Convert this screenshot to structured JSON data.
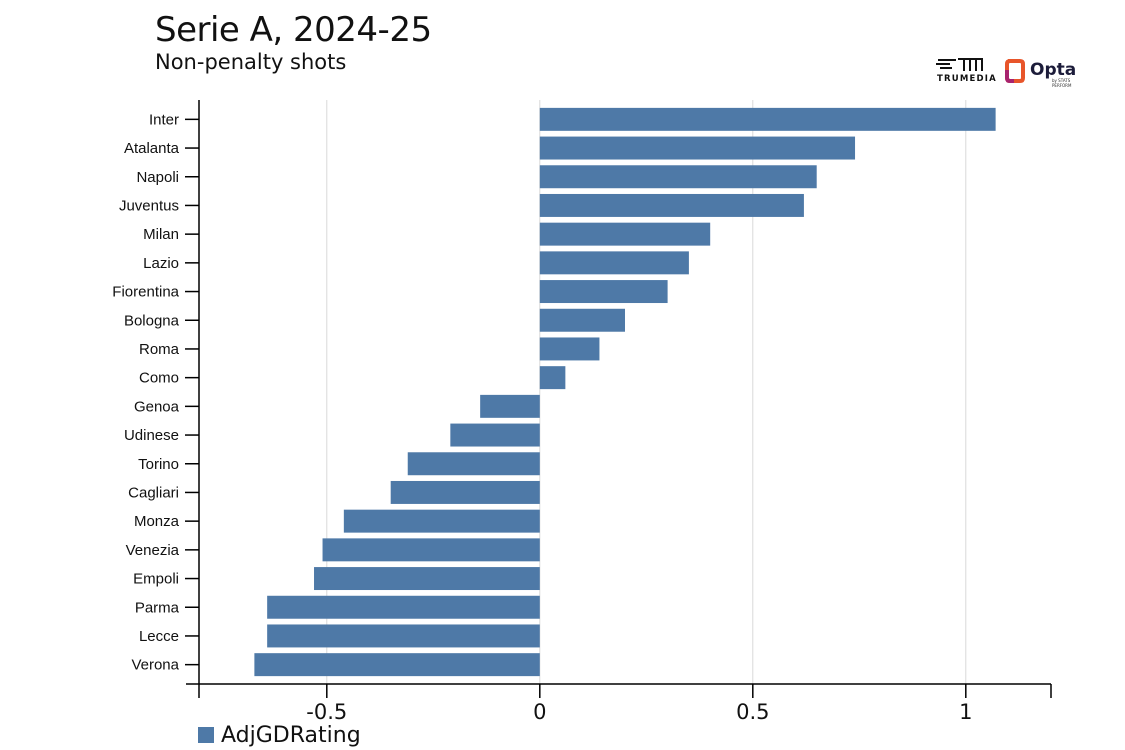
{
  "header": {
    "title": "Serie A, 2024-25",
    "subtitle": "Non-penalty shots"
  },
  "logos": {
    "trumedia_text": "TRUMEDIA",
    "opta_text": "Opta",
    "opta_sub": "by STATS PERFORM"
  },
  "colors": {
    "bar": "#4e79a7",
    "grid": "#d9d9d9",
    "axis": "#000000"
  },
  "chart_data": {
    "type": "bar",
    "orientation": "horizontal",
    "title": "Serie A, 2024-25",
    "subtitle": "Non-penalty shots",
    "categories": [
      "Inter",
      "Atalanta",
      "Napoli",
      "Juventus",
      "Milan",
      "Lazio",
      "Fiorentina",
      "Bologna",
      "Roma",
      "Como",
      "Genoa",
      "Udinese",
      "Torino",
      "Cagliari",
      "Monza",
      "Venezia",
      "Empoli",
      "Parma",
      "Lecce",
      "Verona"
    ],
    "series": [
      {
        "name": "AdjGDRating",
        "values": [
          1.07,
          0.74,
          0.65,
          0.62,
          0.4,
          0.35,
          0.3,
          0.2,
          0.14,
          0.06,
          -0.14,
          -0.21,
          -0.31,
          -0.35,
          -0.46,
          -0.51,
          -0.53,
          -0.64,
          -0.64,
          -0.67
        ]
      }
    ],
    "xlim": [
      -0.8,
      1.2
    ],
    "xticks": [
      -0.5,
      0,
      0.5,
      1
    ],
    "xtick_labels": [
      "-0.5",
      "0",
      "0.5",
      "1"
    ],
    "grid": true,
    "legend": "bottom-left"
  }
}
